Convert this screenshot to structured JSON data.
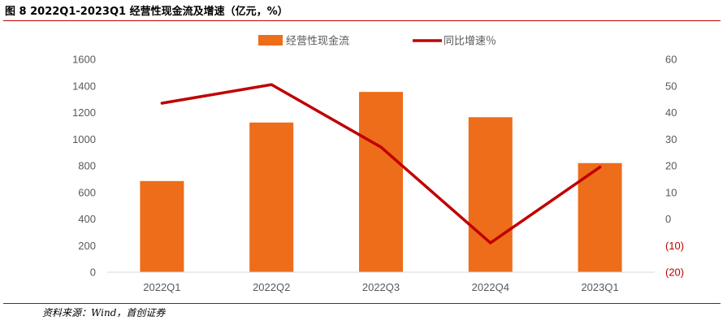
{
  "header": {
    "title": "图 8 2022Q1-2023Q1 经营性现金流及增速（亿元，%）"
  },
  "footer": {
    "source": "资料来源：Wind，首创证券"
  },
  "chart_data": {
    "type": "bar",
    "categories": [
      "2022Q1",
      "2022Q2",
      "2022Q3",
      "2022Q4",
      "2023Q1"
    ],
    "series": [
      {
        "name": "经营性现金流",
        "type": "bar",
        "axis": "left",
        "color": "#ed6d1a",
        "values": [
          685,
          1125,
          1355,
          1165,
          820
        ]
      },
      {
        "name": "同比增速％",
        "type": "line",
        "axis": "right",
        "color": "#c00000",
        "values": [
          43.5,
          50.5,
          27,
          -9,
          19.5
        ]
      }
    ],
    "y_left": {
      "min": 0,
      "max": 1600,
      "step": 200,
      "ticks": [
        "0",
        "200",
        "400",
        "600",
        "800",
        "1000",
        "1200",
        "1400",
        "1600"
      ]
    },
    "y_right": {
      "min": -20,
      "max": 60,
      "step": 10,
      "ticks": [
        "(20)",
        "(10)",
        "0",
        "10",
        "20",
        "30",
        "40",
        "50",
        "60"
      ]
    },
    "grid": false,
    "legend_position": "top-center"
  }
}
